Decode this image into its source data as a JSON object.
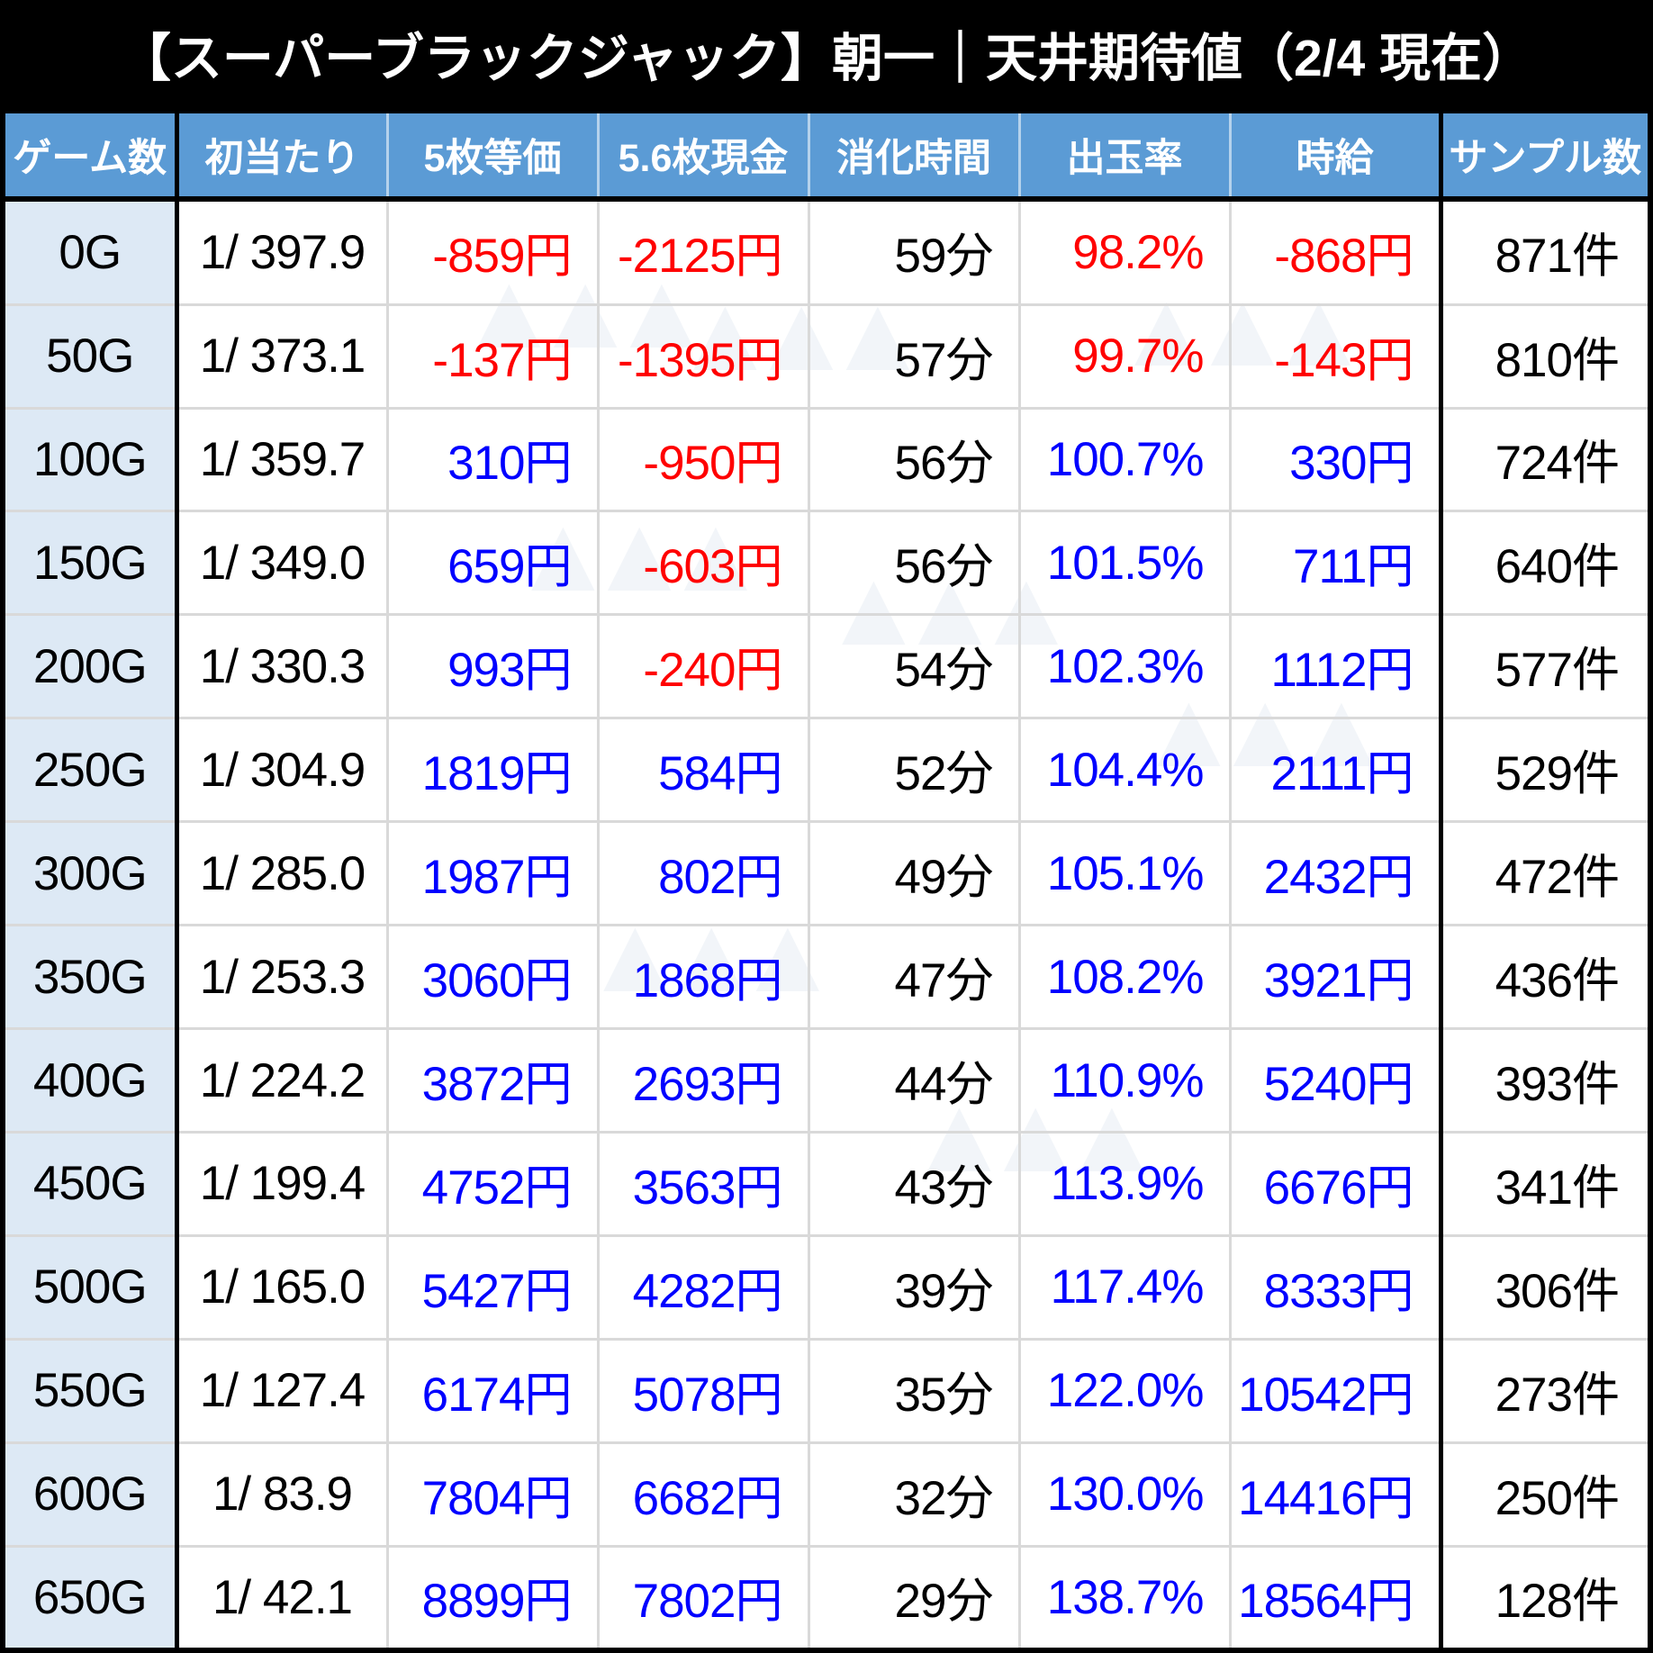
{
  "title": "【スーパーブラックジャック】朝一｜天井期待値（2/4 現在）",
  "watermark": {
    "glyph": "▲▲▲"
  },
  "styles": {
    "title_bg": "#000000",
    "title_text": "#ffffff",
    "header_bg": "#5b9bd5",
    "header_text": "#ffffff",
    "row_label_bg": "#dde9f5",
    "grid_line": "#d9d9d9",
    "heavy_border": "#000000",
    "negative_value": "#ff0000",
    "positive_value": "#0000ff",
    "neutral_value": "#000000",
    "cell_colors": [
      [
        "k",
        "k",
        "r",
        "r",
        "k",
        "r",
        "r",
        "k"
      ],
      [
        "k",
        "k",
        "r",
        "r",
        "k",
        "r",
        "r",
        "k"
      ],
      [
        "k",
        "k",
        "b",
        "r",
        "k",
        "b",
        "b",
        "k"
      ],
      [
        "k",
        "k",
        "b",
        "r",
        "k",
        "b",
        "b",
        "k"
      ],
      [
        "k",
        "k",
        "b",
        "r",
        "k",
        "b",
        "b",
        "k"
      ],
      [
        "k",
        "k",
        "b",
        "b",
        "k",
        "b",
        "b",
        "k"
      ],
      [
        "k",
        "k",
        "b",
        "b",
        "k",
        "b",
        "b",
        "k"
      ],
      [
        "k",
        "k",
        "b",
        "b",
        "k",
        "b",
        "b",
        "k"
      ],
      [
        "k",
        "k",
        "b",
        "b",
        "k",
        "b",
        "b",
        "k"
      ],
      [
        "k",
        "k",
        "b",
        "b",
        "k",
        "b",
        "b",
        "k"
      ],
      [
        "k",
        "k",
        "b",
        "b",
        "k",
        "b",
        "b",
        "k"
      ],
      [
        "k",
        "k",
        "b",
        "b",
        "k",
        "b",
        "b",
        "k"
      ],
      [
        "k",
        "k",
        "b",
        "b",
        "k",
        "b",
        "b",
        "k"
      ],
      [
        "k",
        "k",
        "b",
        "b",
        "k",
        "b",
        "b",
        "k"
      ]
    ]
  },
  "chart_data": {
    "type": "table",
    "title": "【スーパーブラックジャック】朝一｜天井期待値（2/4 現在）",
    "columns": [
      "ゲーム数",
      "初当たり",
      "5枚等価",
      "5.6枚現金",
      "消化時間",
      "出玉率",
      "時給",
      "サンプル数"
    ],
    "rows": [
      [
        "0G",
        "1/ 397.9",
        "-859円",
        "-2125円",
        "59分",
        "98.2%",
        "-868円",
        "871件"
      ],
      [
        "50G",
        "1/ 373.1",
        "-137円",
        "-1395円",
        "57分",
        "99.7%",
        "-143円",
        "810件"
      ],
      [
        "100G",
        "1/ 359.7",
        "310円",
        "-950円",
        "56分",
        "100.7%",
        "330円",
        "724件"
      ],
      [
        "150G",
        "1/ 349.0",
        "659円",
        "-603円",
        "56分",
        "101.5%",
        "711円",
        "640件"
      ],
      [
        "200G",
        "1/ 330.3",
        "993円",
        "-240円",
        "54分",
        "102.3%",
        "1112円",
        "577件"
      ],
      [
        "250G",
        "1/ 304.9",
        "1819円",
        "584円",
        "52分",
        "104.4%",
        "2111円",
        "529件"
      ],
      [
        "300G",
        "1/ 285.0",
        "1987円",
        "802円",
        "49分",
        "105.1%",
        "2432円",
        "472件"
      ],
      [
        "350G",
        "1/ 253.3",
        "3060円",
        "1868円",
        "47分",
        "108.2%",
        "3921円",
        "436件"
      ],
      [
        "400G",
        "1/ 224.2",
        "3872円",
        "2693円",
        "44分",
        "110.9%",
        "5240円",
        "393件"
      ],
      [
        "450G",
        "1/ 199.4",
        "4752円",
        "3563円",
        "43分",
        "113.9%",
        "6676円",
        "341件"
      ],
      [
        "500G",
        "1/ 165.0",
        "5427円",
        "4282円",
        "39分",
        "117.4%",
        "8333円",
        "306件"
      ],
      [
        "550G",
        "1/ 127.4",
        "6174円",
        "5078円",
        "35分",
        "122.0%",
        "10542円",
        "273件"
      ],
      [
        "600G",
        "1/ 83.9",
        "7804円",
        "6682円",
        "32分",
        "130.0%",
        "14416円",
        "250件"
      ],
      [
        "650G",
        "1/ 42.1",
        "8899円",
        "7802円",
        "29分",
        "138.7%",
        "18564円",
        "128件"
      ]
    ]
  }
}
